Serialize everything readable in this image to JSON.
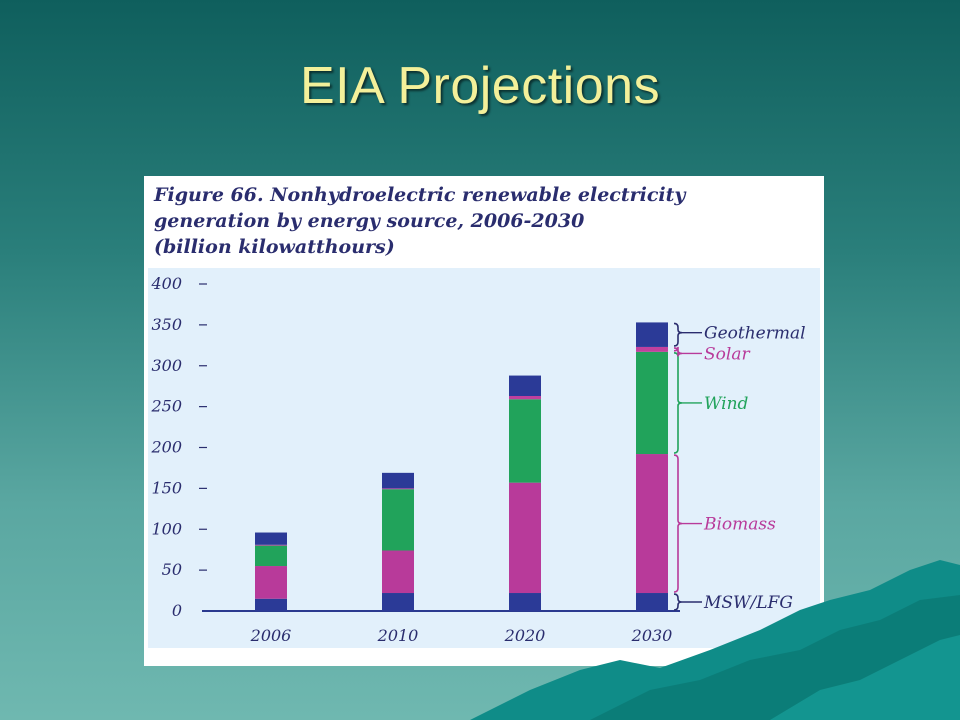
{
  "slide": {
    "title": "EIA Projections"
  },
  "figure": {
    "caption_lines": [
      "Figure 66. Nonhydroelectric renewable electricity",
      "generation by energy source, 2006-2030",
      "(billion kilowatthours)"
    ]
  },
  "chart_data": {
    "type": "bar",
    "stacked": true,
    "title": "Figure 66. Nonhydroelectric renewable electricity generation by energy source, 2006-2030 (billion kilowatthours)",
    "categories": [
      "2006",
      "2010",
      "2020",
      "2030"
    ],
    "yticks": [
      0,
      50,
      100,
      150,
      200,
      250,
      300,
      350,
      400
    ],
    "ylim": [
      0,
      400
    ],
    "grid": false,
    "legend_placement": "right",
    "series": [
      {
        "name": "MSW/LFG",
        "color": "#2b3a97",
        "values": [
          15,
          22,
          22,
          22
        ]
      },
      {
        "name": "Biomass",
        "color": "#b83a9a",
        "values": [
          40,
          52,
          135,
          170
        ]
      },
      {
        "name": "Wind",
        "color": "#21a35b",
        "values": [
          25,
          75,
          102,
          125
        ]
      },
      {
        "name": "Solar",
        "color": "#c0409e",
        "values": [
          1,
          1,
          4,
          6
        ]
      },
      {
        "name": "Geothermal",
        "color": "#2b3a97",
        "values": [
          15,
          19,
          25,
          30
        ]
      }
    ]
  }
}
